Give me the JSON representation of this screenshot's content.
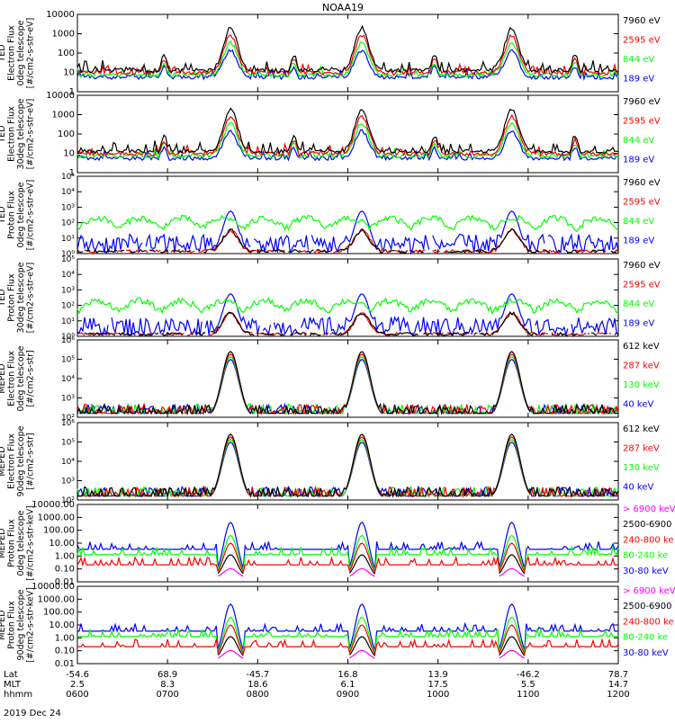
{
  "title": "NOAA19",
  "date_label": "2019 Dec 24",
  "colors": {
    "black": "#000000",
    "red": "#ff0000",
    "green": "#00ff00",
    "blue": "#0000ff",
    "magenta": "#ff00ff",
    "frame": "#000000"
  },
  "xaxis": {
    "row_labels": [
      "Lat",
      "MLT",
      "hhmm"
    ],
    "ticks": [
      {
        "lat": "-54.6",
        "mlt": "2.5",
        "hhmm": "0600"
      },
      {
        "lat": "68.9",
        "mlt": "8.3",
        "hhmm": "0700"
      },
      {
        "lat": "-45.7",
        "mlt": "18.6",
        "hhmm": "0800"
      },
      {
        "lat": "16.8",
        "mlt": "6.1",
        "hhmm": "0900"
      },
      {
        "lat": "13.9",
        "mlt": "17.5",
        "hhmm": "1000"
      },
      {
        "lat": "-46.2",
        "mlt": "5.5",
        "hhmm": "1100"
      },
      {
        "lat": "78.7",
        "mlt": "14.7",
        "hhmm": "1200"
      }
    ]
  },
  "chart_data": [
    {
      "type": "line",
      "panel": "ted-electron-0deg",
      "ylabel": [
        "TED",
        "Electron Flux",
        "0deg telescope",
        "[#/cm2-s-str-eV]"
      ],
      "scale": "log",
      "ylim": [
        1,
        10000
      ],
      "tick_labels": [
        "1",
        "10",
        "100",
        "1000",
        "10000"
      ],
      "tick_style": "plain",
      "series": [
        {
          "name": "7960 eV",
          "color": "black"
        },
        {
          "name": "2595 eV",
          "color": "red"
        },
        {
          "name": "844 eV",
          "color": "green"
        },
        {
          "name": "189 eV",
          "color": "blue"
        }
      ]
    },
    {
      "type": "line",
      "panel": "ted-electron-30deg",
      "ylabel": [
        "TED",
        "Electron Flux",
        "30deg telescope",
        "[#/cm2-s-str-eV]"
      ],
      "scale": "log",
      "ylim": [
        1,
        10000
      ],
      "tick_labels": [
        "1",
        "10",
        "100",
        "1000",
        "10000"
      ],
      "tick_style": "plain",
      "series": [
        {
          "name": "7960 eV",
          "color": "black"
        },
        {
          "name": "2595 eV",
          "color": "red"
        },
        {
          "name": "844 eV",
          "color": "green"
        },
        {
          "name": "189 eV",
          "color": "blue"
        }
      ]
    },
    {
      "type": "line",
      "panel": "ted-proton-0deg",
      "ylabel": [
        "TED",
        "Proton Flux",
        "0deg telescope",
        "[#/cm2-s-str-eV]"
      ],
      "scale": "log",
      "ylim": [
        1,
        100000
      ],
      "tick_labels": [
        "10⁰",
        "10¹",
        "10²",
        "10³",
        "10⁴",
        "10⁵"
      ],
      "tick_style": "exp",
      "series": [
        {
          "name": "7960 eV",
          "color": "black"
        },
        {
          "name": "2595 eV",
          "color": "red"
        },
        {
          "name": "844 eV",
          "color": "green"
        },
        {
          "name": "189 eV",
          "color": "blue"
        }
      ]
    },
    {
      "type": "line",
      "panel": "ted-proton-30deg",
      "ylabel": [
        "TED",
        "Proton Flux",
        "30deg telescope",
        "[#/cm2-s-str-eV]"
      ],
      "scale": "log",
      "ylim": [
        1,
        100000
      ],
      "tick_labels": [
        "10⁰",
        "10¹",
        "10²",
        "10³",
        "10⁴",
        "10⁵"
      ],
      "tick_style": "exp",
      "series": [
        {
          "name": "7960 eV",
          "color": "black"
        },
        {
          "name": "2595 eV",
          "color": "red"
        },
        {
          "name": "844 eV",
          "color": "green"
        },
        {
          "name": "189 eV",
          "color": "blue"
        }
      ]
    },
    {
      "type": "line",
      "panel": "meped-electron-0deg",
      "ylabel": [
        "MEPED",
        "Electron Flux",
        "0deg telescope",
        "[#/cm2-s-str]"
      ],
      "scale": "log",
      "ylim": [
        100,
        1000000
      ],
      "tick_labels": [
        "10²",
        "10³",
        "10⁴",
        "10⁵",
        "10⁶"
      ],
      "tick_style": "exp",
      "series": [
        {
          "name": "612 keV",
          "color": "black"
        },
        {
          "name": "287 keV",
          "color": "red"
        },
        {
          "name": "130 keV",
          "color": "green"
        },
        {
          "name": "40 keV",
          "color": "blue"
        }
      ]
    },
    {
      "type": "line",
      "panel": "meped-electron-90deg",
      "ylabel": [
        "MEPED",
        "Electron Flux",
        "90deg telescope",
        "[#/cm2-s-str]"
      ],
      "scale": "log",
      "ylim": [
        100,
        1000000
      ],
      "tick_labels": [
        "10²",
        "10³",
        "10⁴",
        "10⁵",
        "10⁶"
      ],
      "tick_style": "exp",
      "series": [
        {
          "name": "612 keV",
          "color": "black"
        },
        {
          "name": "287 keV",
          "color": "red"
        },
        {
          "name": "130 keV",
          "color": "green"
        },
        {
          "name": "40 keV",
          "color": "blue"
        }
      ]
    },
    {
      "type": "line",
      "panel": "meped-proton-0deg",
      "ylabel": [
        "MEPED",
        "Proton Flux",
        "0deg telescope",
        "[#/cm2-s-str-keV]"
      ],
      "scale": "log",
      "ylim": [
        0.01,
        10000
      ],
      "tick_labels": [
        "0.01",
        "0.10",
        "1.00",
        "10.00",
        "100.00",
        "1000.00",
        "10000.00"
      ],
      "tick_style": "plain",
      "series": [
        {
          "name": "> 6900 keV",
          "color": "magenta"
        },
        {
          "name": "2500-6900",
          "color": "black"
        },
        {
          "name": "240-800 ke",
          "color": "red"
        },
        {
          "name": "80-240 ke",
          "color": "green"
        },
        {
          "name": "30-80 keV",
          "color": "blue"
        }
      ]
    },
    {
      "type": "line",
      "panel": "meped-proton-90deg",
      "ylabel": [
        "MEPED",
        "Proton Flux",
        "90deg telescope",
        "[#/cm2-s-str-keV]"
      ],
      "scale": "log",
      "ylim": [
        0.01,
        10000
      ],
      "tick_labels": [
        "0.01",
        "0.10",
        "1.00",
        "10.00",
        "100.00",
        "1000.00",
        "10000.00"
      ],
      "tick_style": "plain",
      "series": [
        {
          "name": "> 6900 keV",
          "color": "magenta"
        },
        {
          "name": "2500-6900",
          "color": "black"
        },
        {
          "name": "240-800 ke",
          "color": "red"
        },
        {
          "name": "80-240 ke",
          "color": "green"
        },
        {
          "name": "30-80 keV",
          "color": "blue"
        }
      ]
    }
  ]
}
